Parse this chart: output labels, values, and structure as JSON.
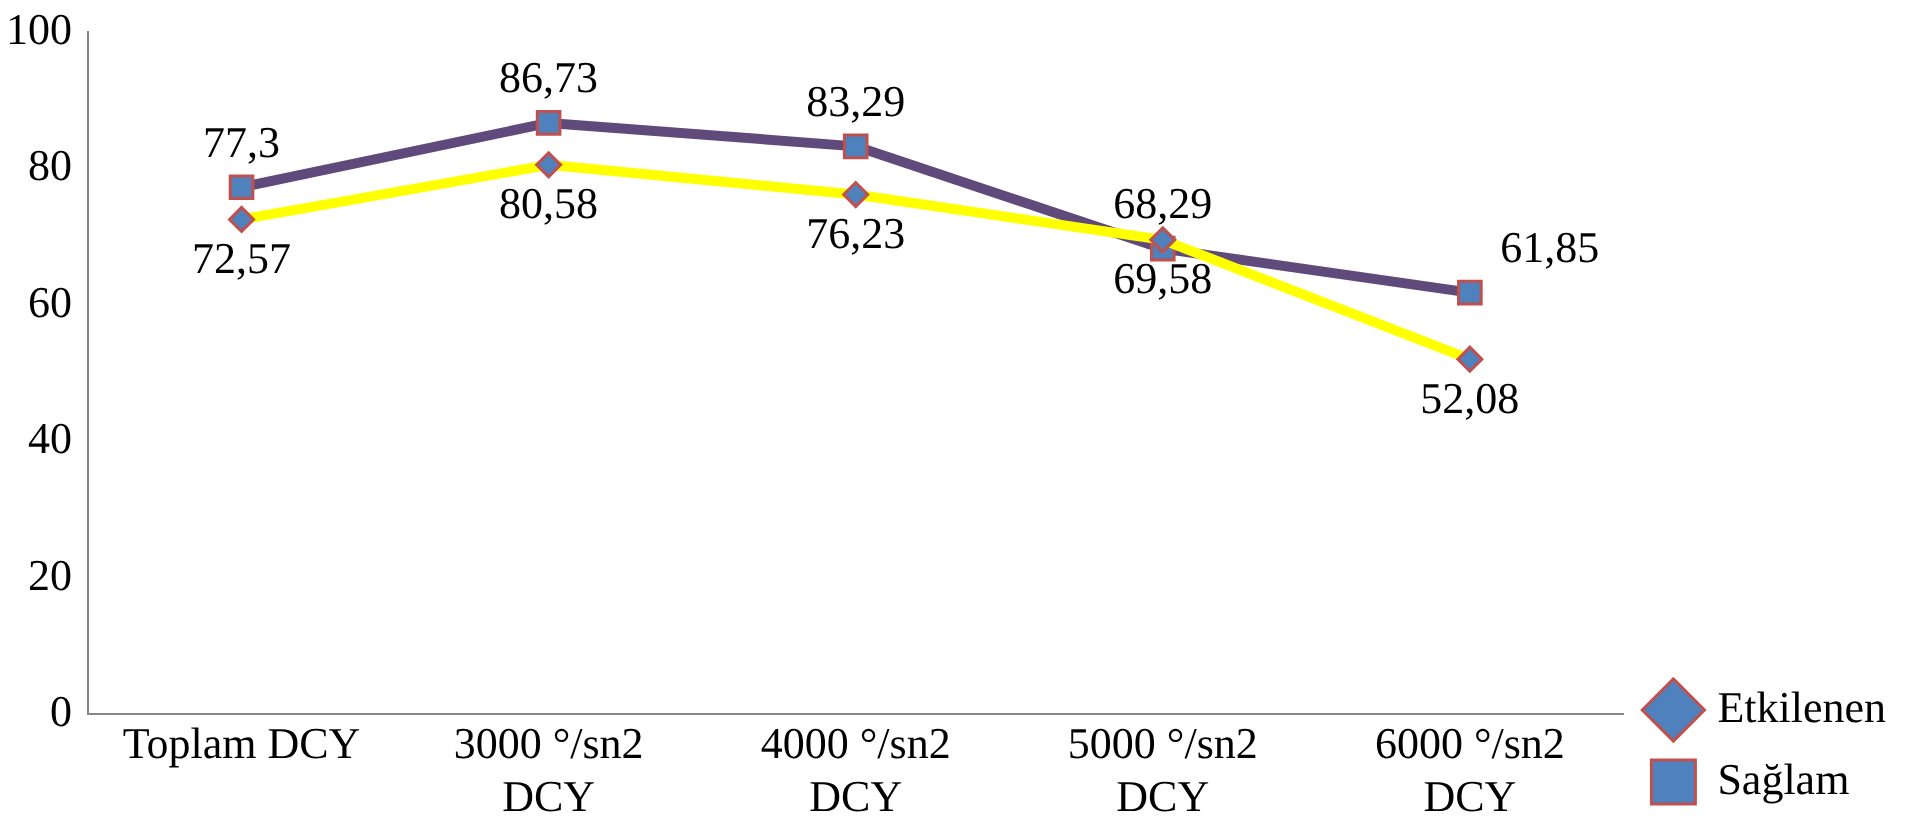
{
  "chart_data": {
    "type": "line",
    "categories": [
      "Toplam DCY",
      "3000 °/sn2 DCY",
      "4000 °/sn2 DCY",
      "5000 °/sn2 DCY",
      "6000 °/sn2 DCY"
    ],
    "series": [
      {
        "name": "Etkilenen",
        "color": "#ffff00",
        "marker": "diamond",
        "values": [
          72.57,
          80.58,
          76.23,
          69.58,
          52.08
        ],
        "value_labels": [
          "72,57",
          "80,58",
          "76,23",
          "69,58",
          "52,08"
        ]
      },
      {
        "name": "Sağlam",
        "color": "#604a7b",
        "marker": "square",
        "values": [
          77.3,
          86.73,
          83.29,
          68.29,
          61.85
        ],
        "value_labels": [
          "77,3",
          "86,73",
          "83,29",
          "68,29",
          "61,85"
        ]
      }
    ],
    "ylim": [
      0,
      100
    ],
    "yticks": [
      0,
      20,
      40,
      60,
      80,
      100
    ],
    "grid": false,
    "legend": "bottom right",
    "line_style": "solid"
  }
}
